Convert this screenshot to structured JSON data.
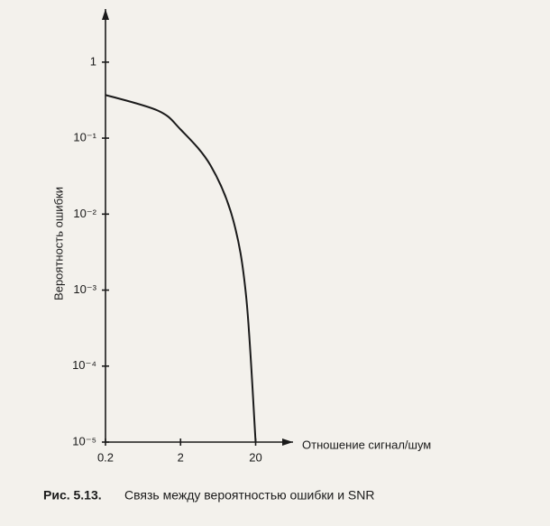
{
  "chart_data": {
    "type": "line",
    "log_x": true,
    "log_y": true,
    "ylabel": "Вероятность ошибки",
    "xlabel": "Отношение сигнал/шум",
    "caption_label": "Рис. 5.13.",
    "caption": "Связь между вероятностью ошибки и SNR",
    "x": [
      0.2,
      1,
      2,
      5,
      10,
      15,
      20
    ],
    "series": [
      {
        "color": "#1a1a1a",
        "values": [
          0.37,
          0.23,
          0.13,
          0.044,
          0.0085,
          0.0008,
          1e-05
        ]
      }
    ],
    "xlim": [
      0.2,
      63
    ],
    "xticks": [
      0.2,
      2,
      20
    ],
    "ylim": [
      1e-05,
      5
    ],
    "yticks": [
      1,
      {
        "value": 0.1,
        "label": "10⁻¹"
      },
      {
        "value": 0.01,
        "label": "10⁻²"
      },
      {
        "value": 0.001,
        "label": "10⁻³"
      },
      {
        "value": 0.0001,
        "label": "10⁻⁴"
      },
      {
        "value": 1e-05,
        "label": "10⁻⁵"
      }
    ]
  }
}
